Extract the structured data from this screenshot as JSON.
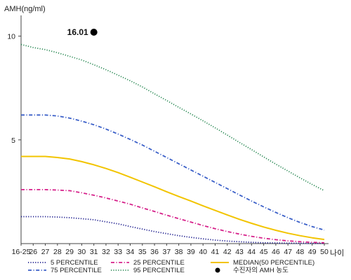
{
  "chart_data": {
    "type": "line",
    "title": "",
    "ylabel": "AMH(ng/ml)",
    "xlabel": "나이",
    "ylim": [
      0,
      11
    ],
    "grid": false,
    "legend_position": "bottom",
    "y_ticks": [
      {
        "value": 5,
        "label": "5"
      },
      {
        "value": 10,
        "label": "10"
      }
    ],
    "categories": [
      "16-25",
      "26",
      "27",
      "28",
      "29",
      "30",
      "31",
      "32",
      "33",
      "34",
      "35",
      "36",
      "37",
      "38",
      "39",
      "40",
      "41",
      "42",
      "43",
      "44",
      "45",
      "46",
      "47",
      "48",
      "49",
      "50"
    ],
    "series": [
      {
        "name": "5 PERCENTILE",
        "color": "#1a1a8c",
        "dash": "dotted",
        "values": [
          1.3,
          1.3,
          1.3,
          1.28,
          1.25,
          1.2,
          1.15,
          1.05,
          0.95,
          0.82,
          0.7,
          0.58,
          0.48,
          0.38,
          0.3,
          0.23,
          0.17,
          0.12,
          0.09,
          0.06,
          0.04,
          0.03,
          0.02,
          0.015,
          0.01,
          0.01
        ]
      },
      {
        "name": "25 PERCENTILE",
        "color": "#d6208a",
        "dash": "dashdot",
        "values": [
          2.6,
          2.6,
          2.6,
          2.58,
          2.55,
          2.45,
          2.33,
          2.2,
          2.05,
          1.9,
          1.72,
          1.55,
          1.37,
          1.2,
          1.04,
          0.87,
          0.72,
          0.58,
          0.46,
          0.35,
          0.26,
          0.19,
          0.13,
          0.09,
          0.06,
          0.04
        ]
      },
      {
        "name": "MEDIAN(50 PERCENTILE)",
        "color": "#f2c400",
        "dash": "solid",
        "values": [
          4.2,
          4.2,
          4.2,
          4.15,
          4.08,
          3.95,
          3.8,
          3.62,
          3.42,
          3.2,
          2.97,
          2.74,
          2.5,
          2.27,
          2.05,
          1.82,
          1.6,
          1.38,
          1.17,
          0.98,
          0.8,
          0.64,
          0.5,
          0.38,
          0.28,
          0.2
        ]
      },
      {
        "name": "75 PERCENTILE",
        "color": "#3a5fc8",
        "dash": "dashdot",
        "values": [
          6.2,
          6.2,
          6.2,
          6.15,
          6.05,
          5.9,
          5.73,
          5.52,
          5.28,
          5.02,
          4.75,
          4.45,
          4.15,
          3.85,
          3.55,
          3.25,
          2.95,
          2.65,
          2.35,
          2.05,
          1.77,
          1.5,
          1.25,
          1.02,
          0.82,
          0.65
        ]
      },
      {
        "name": "95 PERCENTILE",
        "color": "#2e8b57",
        "dash": "dotted",
        "values": [
          9.6,
          9.45,
          9.35,
          9.2,
          9.03,
          8.85,
          8.62,
          8.38,
          8.12,
          7.85,
          7.55,
          7.22,
          6.9,
          6.57,
          6.25,
          5.92,
          5.58,
          5.23,
          4.88,
          4.53,
          4.18,
          3.83,
          3.5,
          3.17,
          2.85,
          2.55
        ]
      }
    ],
    "annotation": {
      "name": "수진자의 AMH 농도",
      "category": "31",
      "value": 16.01,
      "label": "16.01",
      "color": "#000000"
    },
    "legend": [
      {
        "label": "5 PERCENTILE",
        "series": 0
      },
      {
        "label": "25 PERCENTILE",
        "series": 1
      },
      {
        "label": "MEDIAN(50 PERCENTILE)",
        "series": 2
      },
      {
        "label": "75 PERCENTILE",
        "series": 3
      },
      {
        "label": "95 PERCENTILE",
        "series": 4
      },
      {
        "label": "수진자의 AMH 농도",
        "marker": true
      }
    ]
  }
}
